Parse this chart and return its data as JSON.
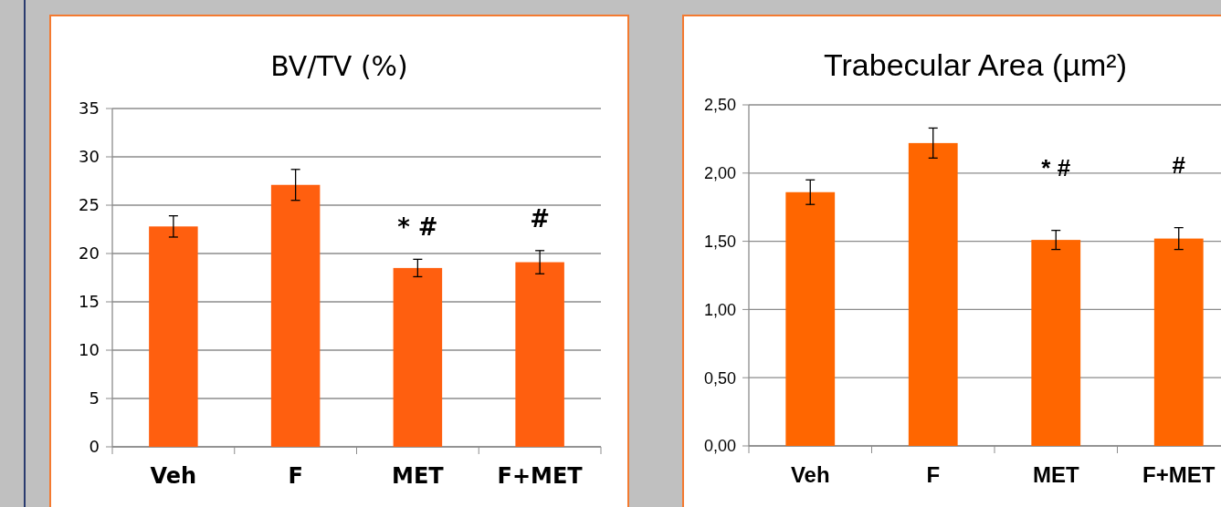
{
  "chart_data": [
    {
      "type": "bar",
      "title": "BV/TV (%)",
      "categories": [
        "Veh",
        "F",
        "MET",
        "F+MET"
      ],
      "values": [
        22.8,
        27.1,
        18.5,
        19.1
      ],
      "errors": [
        1.1,
        1.6,
        0.9,
        1.2
      ],
      "color": "#ff5f0f",
      "ylim": [
        0,
        35
      ],
      "yticks": [
        0,
        5,
        10,
        15,
        20,
        25,
        30,
        35
      ],
      "grid": "y",
      "annotations": [
        "* #",
        "#"
      ]
    },
    {
      "type": "bar",
      "title": "Trabecular Area (µm²)",
      "categories": [
        "Veh",
        "F",
        "MET",
        "F+MET"
      ],
      "values": [
        1.86,
        2.22,
        1.51,
        1.52
      ],
      "errors": [
        0.09,
        0.11,
        0.07,
        0.08
      ],
      "color": "#ff6600",
      "ylim": [
        0,
        2.5
      ],
      "yticks": [
        {
          "value": 0,
          "label": "0,00"
        },
        {
          "value": 0.5,
          "label": "0,50"
        },
        {
          "value": 1,
          "label": "1,00"
        },
        {
          "value": 1.5,
          "label": "1,50"
        },
        {
          "value": 2,
          "label": "2,00"
        },
        {
          "value": 2.5,
          "label": "2,50"
        }
      ],
      "grid": "y",
      "annotations": [
        "* #",
        "#"
      ]
    }
  ]
}
